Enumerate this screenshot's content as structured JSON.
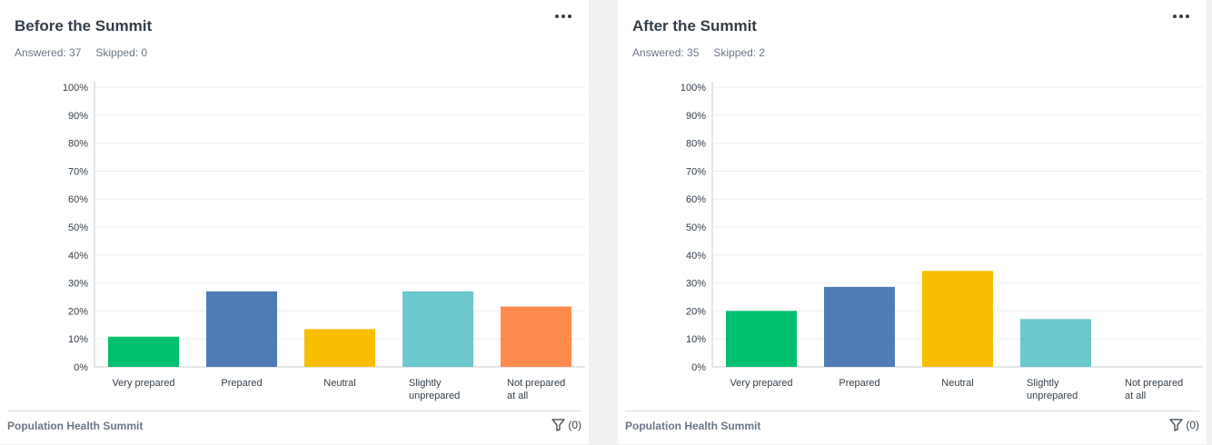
{
  "cards": [
    {
      "title": "Before the Summit",
      "answered": "Answered: 37",
      "skipped": "Skipped: 0",
      "footer_name": "Population Health Summit",
      "filter_count": "(0)"
    },
    {
      "title": "After the Summit",
      "answered": "Answered: 35",
      "skipped": "Skipped: 2",
      "footer_name": "Population Health Summit",
      "filter_count": "(0)"
    }
  ],
  "chart_data": [
    {
      "type": "bar",
      "title": "Before the Summit",
      "categories": [
        "Very prepared",
        "Prepared",
        "Neutral",
        "Slightly unprepared",
        "Not prepared at all"
      ],
      "category_lines": [
        [
          "Very prepared"
        ],
        [
          "Prepared"
        ],
        [
          "Neutral"
        ],
        [
          "Slightly",
          "unprepared"
        ],
        [
          "Not prepared",
          "at all"
        ]
      ],
      "values": [
        10.8,
        27.0,
        13.5,
        27.0,
        21.6
      ],
      "colors": [
        "#00bf6f",
        "#507cb6",
        "#f9be00",
        "#6bc8cd",
        "#ff8b4f"
      ],
      "yticks": [
        "0%",
        "10%",
        "20%",
        "30%",
        "40%",
        "50%",
        "60%",
        "70%",
        "80%",
        "90%",
        "100%"
      ],
      "ylim": [
        0,
        100
      ],
      "grid": true
    },
    {
      "type": "bar",
      "title": "After the Summit",
      "categories": [
        "Very prepared",
        "Prepared",
        "Neutral",
        "Slightly unprepared",
        "Not prepared at all"
      ],
      "category_lines": [
        [
          "Very prepared"
        ],
        [
          "Prepared"
        ],
        [
          "Neutral"
        ],
        [
          "Slightly",
          "unprepared"
        ],
        [
          "Not prepared",
          "at all"
        ]
      ],
      "values": [
        20.0,
        28.6,
        34.3,
        17.1,
        0
      ],
      "colors": [
        "#00bf6f",
        "#507cb6",
        "#f9be00",
        "#6bc8cd",
        "#ff8b4f"
      ],
      "yticks": [
        "0%",
        "10%",
        "20%",
        "30%",
        "40%",
        "50%",
        "60%",
        "70%",
        "80%",
        "90%",
        "100%"
      ],
      "ylim": [
        0,
        100
      ],
      "grid": true
    }
  ]
}
